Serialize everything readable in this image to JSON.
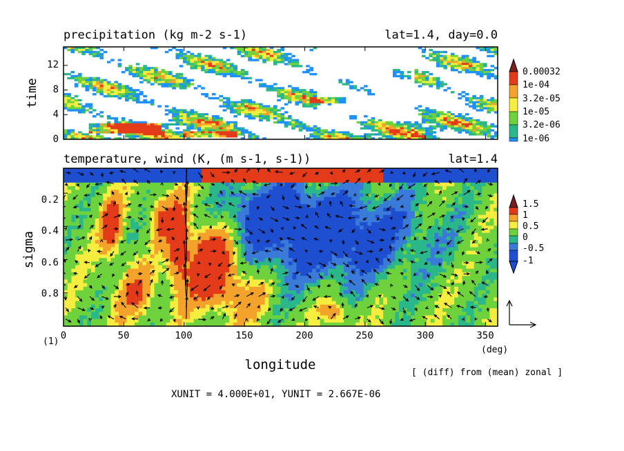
{
  "figure": {
    "panel_number": "(1)",
    "xlabel": "longitude",
    "x_unit": "(deg)",
    "note": "[ (diff) from (mean) zonal ]",
    "unit_line": "XUNIT = 4.000E+01, YUNIT = 2.667E-06"
  },
  "chart_data": [
    {
      "type": "heatmap",
      "title": "precipitation (kg m-2 s-1)",
      "subtitle": "lat=1.4, day=0.0",
      "ylabel": "time",
      "xlim": [
        0,
        360
      ],
      "ylim": [
        0,
        15
      ],
      "y_ticks": [
        "0",
        "4",
        "8",
        "12"
      ],
      "colorbar": {
        "labels": [
          "0.00032",
          "1e-04",
          "3.2e-05",
          "1e-05",
          "3.2e-06",
          "1e-06"
        ],
        "colors": [
          "#7a1f1f",
          "#e33b1a",
          "#f3a32b",
          "#f5ed3f",
          "#6ed23c",
          "#2ab78a",
          "#1e90ff"
        ]
      },
      "features": [
        {
          "x": [
            20,
            80
          ],
          "t": [
            1,
            2.5
          ],
          "note": "rain band"
        },
        {
          "x": [
            100,
            145
          ],
          "t": [
            0.3,
            1.2
          ],
          "note": "rain band"
        },
        {
          "x": [
            205,
            235
          ],
          "t": [
            6,
            7
          ],
          "note": "rain band"
        }
      ]
    },
    {
      "type": "heatmap",
      "title": "temperature, wind (K, (m s-1, s-1))",
      "subtitle": "lat=1.4",
      "ylabel": "sigma",
      "xlim": [
        0,
        360
      ],
      "ylim": [
        1.0,
        0.05
      ],
      "x_ticks": [
        "0",
        "50",
        "100",
        "150",
        "200",
        "250",
        "300",
        "350"
      ],
      "y_ticks": [
        "0.2",
        "0.4",
        "0.6",
        "0.8"
      ],
      "colorbar": {
        "labels": [
          "1.5",
          "1",
          "0.5",
          "0",
          "-0.5",
          "-1"
        ],
        "colors": [
          "#7a1f1f",
          "#e33b1a",
          "#f3a32b",
          "#f5ed3f",
          "#6ed23c",
          "#2ab78a",
          "#3a7ad8",
          "#1e4fd0"
        ]
      },
      "vector_overlay": true,
      "features": [
        {
          "x": [
            110,
            150
          ],
          "sigma": [
            0.35,
            0.85
          ],
          "sign": "warm"
        },
        {
          "x": [
            160,
            290
          ],
          "sigma": [
            0.3,
            0.75
          ],
          "sign": "cold"
        },
        {
          "x": [
            120,
            260
          ],
          "sigma": [
            0.05,
            0.12
          ],
          "sign": "warm"
        },
        {
          "x": [
            0,
            110
          ],
          "sigma": [
            0.05,
            0.12
          ],
          "sign": "cold"
        }
      ]
    }
  ]
}
